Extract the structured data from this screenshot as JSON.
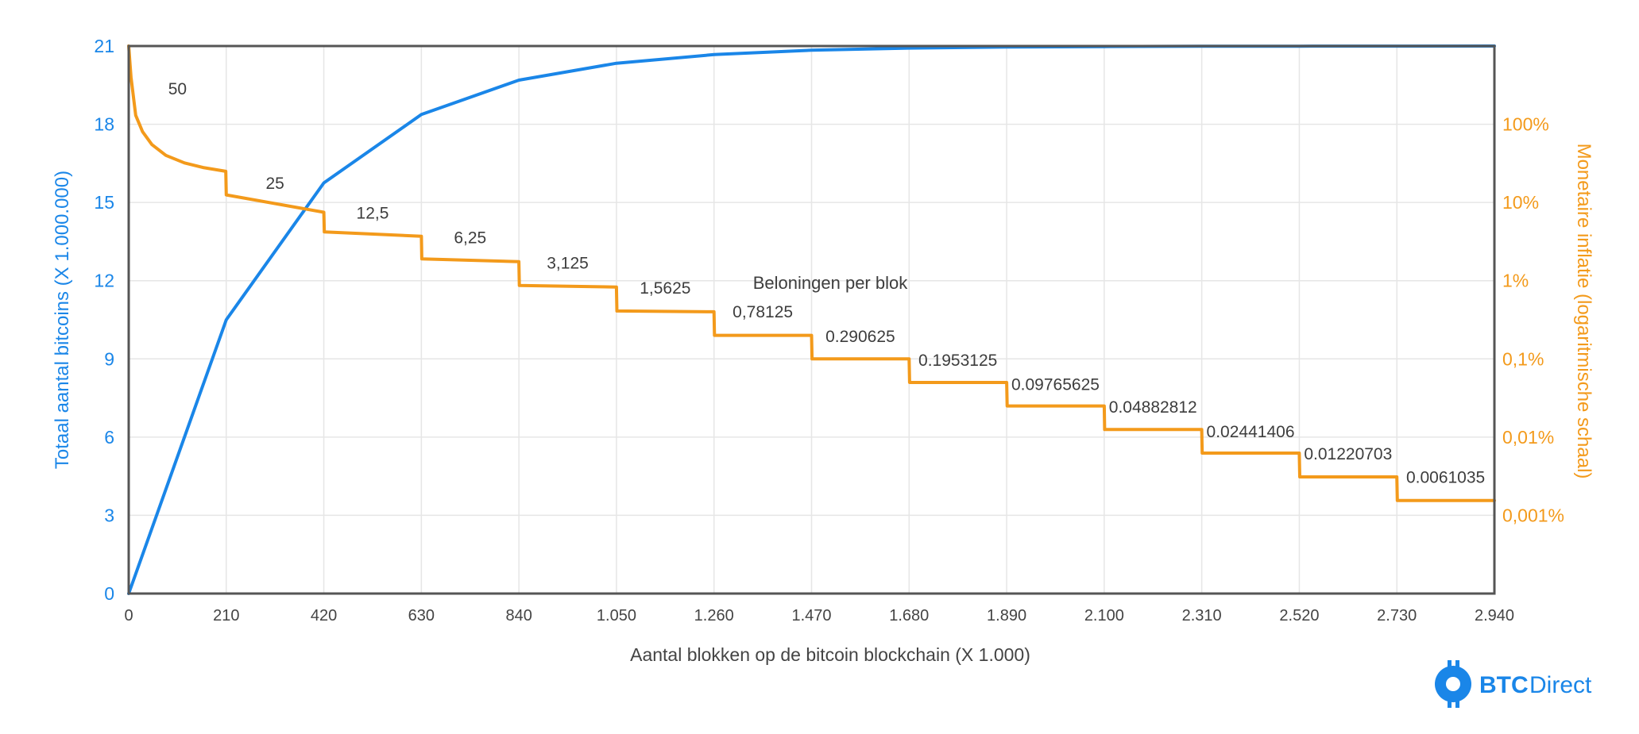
{
  "colors": {
    "supply": "#1a86e8",
    "inflation": "#f39a1b",
    "frame": "#555555",
    "grid": "#e6e6e6",
    "text": "#444444"
  },
  "logo": {
    "icon": "bitcoin-b-icon",
    "text_bold": "BTC",
    "text_light": "Direct"
  },
  "chart_data": {
    "type": "line",
    "xlabel": "Aantal blokken op de bitcoin blockchain (X 1.000)",
    "ylabel_left": "Totaal aantal bitcoins (X 1.000.000)",
    "ylabel_right": "Monetaire inflatie (logaritmische schaal)",
    "annotation": "Beloningen per blok",
    "xlim": [
      0,
      2940
    ],
    "ylim_left": [
      0,
      21
    ],
    "ylim_right": [
      0.0001,
      1000
    ],
    "right_scale": "log",
    "grid": true,
    "x_ticks": [
      {
        "value": 0,
        "label": "0"
      },
      {
        "value": 210,
        "label": "210"
      },
      {
        "value": 420,
        "label": "420"
      },
      {
        "value": 630,
        "label": "630"
      },
      {
        "value": 840,
        "label": "840"
      },
      {
        "value": 1050,
        "label": "1.050"
      },
      {
        "value": 1260,
        "label": "1.260"
      },
      {
        "value": 1470,
        "label": "1.470"
      },
      {
        "value": 1680,
        "label": "1.680"
      },
      {
        "value": 1890,
        "label": "1.890"
      },
      {
        "value": 2100,
        "label": "2.100"
      },
      {
        "value": 2310,
        "label": "2.310"
      },
      {
        "value": 2520,
        "label": "2.520"
      },
      {
        "value": 2730,
        "label": "2.730"
      },
      {
        "value": 2940,
        "label": "2.940"
      }
    ],
    "y_left_ticks": [
      {
        "value": 0,
        "label": "0"
      },
      {
        "value": 3,
        "label": "3"
      },
      {
        "value": 6,
        "label": "6"
      },
      {
        "value": 9,
        "label": "9"
      },
      {
        "value": 12,
        "label": "12"
      },
      {
        "value": 15,
        "label": "15"
      },
      {
        "value": 18,
        "label": "18"
      },
      {
        "value": 21,
        "label": "21"
      }
    ],
    "y_right_ticks": [
      {
        "value": 100,
        "label": "100%"
      },
      {
        "value": 10,
        "label": "10%"
      },
      {
        "value": 1,
        "label": "1%"
      },
      {
        "value": 0.1,
        "label": "0,1%"
      },
      {
        "value": 0.01,
        "label": "0,01%"
      },
      {
        "value": 0.001,
        "label": "0,001%"
      }
    ],
    "series": [
      {
        "name": "Totaal aantal bitcoins",
        "axis": "left",
        "x": [
          0,
          210,
          420,
          630,
          840,
          1050,
          1260,
          1470,
          1680,
          1890,
          2100,
          2310,
          2520,
          2730,
          2940
        ],
        "y": [
          0,
          10.5,
          15.75,
          18.375,
          19.69,
          20.34,
          20.67,
          20.84,
          20.92,
          20.96,
          20.98,
          20.99,
          20.995,
          20.998,
          21
        ]
      },
      {
        "name": "Monetaire inflatie",
        "axis": "right",
        "x": [
          0,
          5,
          15,
          30,
          50,
          80,
          120,
          160,
          209,
          210,
          420,
          421,
          630,
          631,
          840,
          841,
          1050,
          1051,
          1260,
          1261,
          1470,
          1471,
          1680,
          1681,
          1890,
          1891,
          2100,
          2101,
          2310,
          2311,
          2520,
          2521,
          2730,
          2731,
          2940
        ],
        "y": [
          1000,
          400,
          130,
          80,
          55,
          40,
          32,
          28,
          25,
          12.5,
          7.5,
          4.2,
          3.7,
          1.9,
          1.75,
          0.87,
          0.83,
          0.41,
          0.4,
          0.2,
          0.2,
          0.1,
          0.1,
          0.05,
          0.05,
          0.025,
          0.025,
          0.0125,
          0.0125,
          0.00625,
          0.00625,
          0.0031,
          0.0031,
          0.00155,
          0.00155
        ]
      }
    ],
    "rewards": [
      {
        "label": "50",
        "x": 105,
        "y": 240
      },
      {
        "label": "25",
        "x": 315,
        "y": 15
      },
      {
        "label": "12,5",
        "x": 525,
        "y": 6.2
      },
      {
        "label": "6,25",
        "x": 735,
        "y": 3.0
      },
      {
        "label": "3,125",
        "x": 945,
        "y": 1.42
      },
      {
        "label": "1,5625",
        "x": 1155,
        "y": 0.68
      },
      {
        "label": "0,78125",
        "x": 1365,
        "y": 0.34
      },
      {
        "label": "0.290625",
        "x": 1575,
        "y": 0.165
      },
      {
        "label": "0.1953125",
        "x": 1785,
        "y": 0.082
      },
      {
        "label": "0.09765625",
        "x": 1995,
        "y": 0.04
      },
      {
        "label": "0.04882812",
        "x": 2205,
        "y": 0.0205
      },
      {
        "label": "0.02441406",
        "x": 2415,
        "y": 0.01
      },
      {
        "label": "0.01220703",
        "x": 2625,
        "y": 0.0052
      },
      {
        "label": "0.0061035",
        "x": 2835,
        "y": 0.0026
      }
    ]
  }
}
